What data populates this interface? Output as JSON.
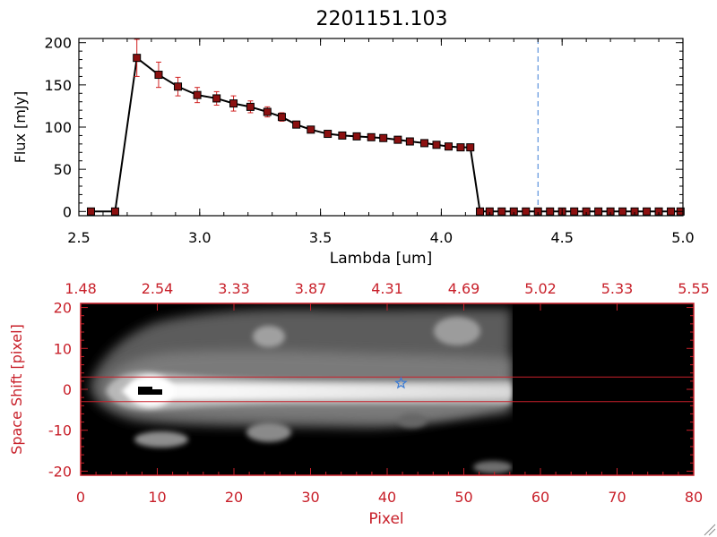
{
  "title": "2201151.103",
  "colors": {
    "spectrum_line": "#000000",
    "marker": "#8b1010",
    "error_bar": "#d02020",
    "dashed_line": "#3a7bd5",
    "red_axes": "#c8202a",
    "star": "#3a7bd5"
  },
  "chart_data": [
    {
      "type": "line",
      "title": "2201151.103",
      "xlabel": "Lambda [um]",
      "ylabel": "Flux [mJy]",
      "xlim": [
        2.5,
        5.0
      ],
      "ylim": [
        -5,
        205
      ],
      "x_ticks": [
        "2.5",
        "3.0",
        "3.5",
        "4.0",
        "4.5",
        "5.0"
      ],
      "y_ticks": [
        "0",
        "50",
        "100",
        "150",
        "200"
      ],
      "x_tick_values": [
        2.5,
        3.0,
        3.5,
        4.0,
        4.5,
        5.0
      ],
      "y_tick_values": [
        0,
        50,
        100,
        150,
        200
      ],
      "vline": 4.4,
      "grid": false,
      "series": [
        {
          "x": [
            2.55,
            2.65,
            2.74,
            2.83,
            2.91,
            2.99,
            3.07,
            3.14,
            3.21,
            3.28,
            3.34,
            3.4,
            3.46,
            3.53,
            3.59,
            3.65,
            3.71,
            3.76,
            3.82,
            3.87,
            3.93,
            3.98,
            4.03,
            4.08,
            4.12,
            4.16,
            4.2,
            4.25,
            4.3,
            4.35,
            4.4,
            4.45,
            4.5,
            4.55,
            4.6,
            4.65,
            4.7,
            4.75,
            4.8,
            4.85,
            4.9,
            4.95,
            4.99
          ],
          "y": [
            0,
            0,
            182,
            162,
            148,
            138,
            134,
            128,
            124,
            118,
            112,
            103,
            97,
            92,
            90,
            89,
            88,
            87,
            85,
            83,
            81,
            79,
            77,
            76,
            76,
            0,
            0,
            0,
            0,
            0,
            0,
            0,
            0,
            0,
            0,
            0,
            0,
            0,
            0,
            0,
            0,
            0,
            0
          ],
          "yerr": [
            0,
            0,
            22,
            15,
            11,
            9,
            8,
            9,
            7,
            6,
            5,
            3,
            2,
            2,
            2,
            2,
            2,
            2,
            2,
            2,
            2,
            2,
            2,
            2,
            2,
            0,
            0,
            0,
            0,
            0,
            0,
            0,
            0,
            0,
            0,
            0,
            0,
            0,
            0,
            0,
            0,
            0,
            0
          ]
        }
      ]
    },
    {
      "type": "heatmap",
      "xlabel": "Pixel",
      "ylabel": "Space Shift [pixel]",
      "xlim": [
        0,
        80
      ],
      "ylim": [
        -21,
        21
      ],
      "x_ticks": [
        "0",
        "10",
        "20",
        "30",
        "40",
        "50",
        "60",
        "70",
        "80"
      ],
      "y_ticks": [
        "-20",
        "-10",
        "0",
        "10",
        "20"
      ],
      "x_tick_values": [
        0,
        10,
        20,
        30,
        40,
        50,
        60,
        70,
        80
      ],
      "y_tick_values": [
        -20,
        -10,
        0,
        10,
        20
      ],
      "top_ticks": [
        "1.48",
        "2.54",
        "3.33",
        "3.87",
        "4.31",
        "4.69",
        "5.02",
        "5.33",
        "5.55"
      ],
      "data_extent_pixel": 57,
      "aperture_rows": [
        -3,
        3
      ],
      "star_marker": {
        "pixel": 41.8,
        "shift": 1.5
      },
      "colormap": "grayscale"
    }
  ]
}
